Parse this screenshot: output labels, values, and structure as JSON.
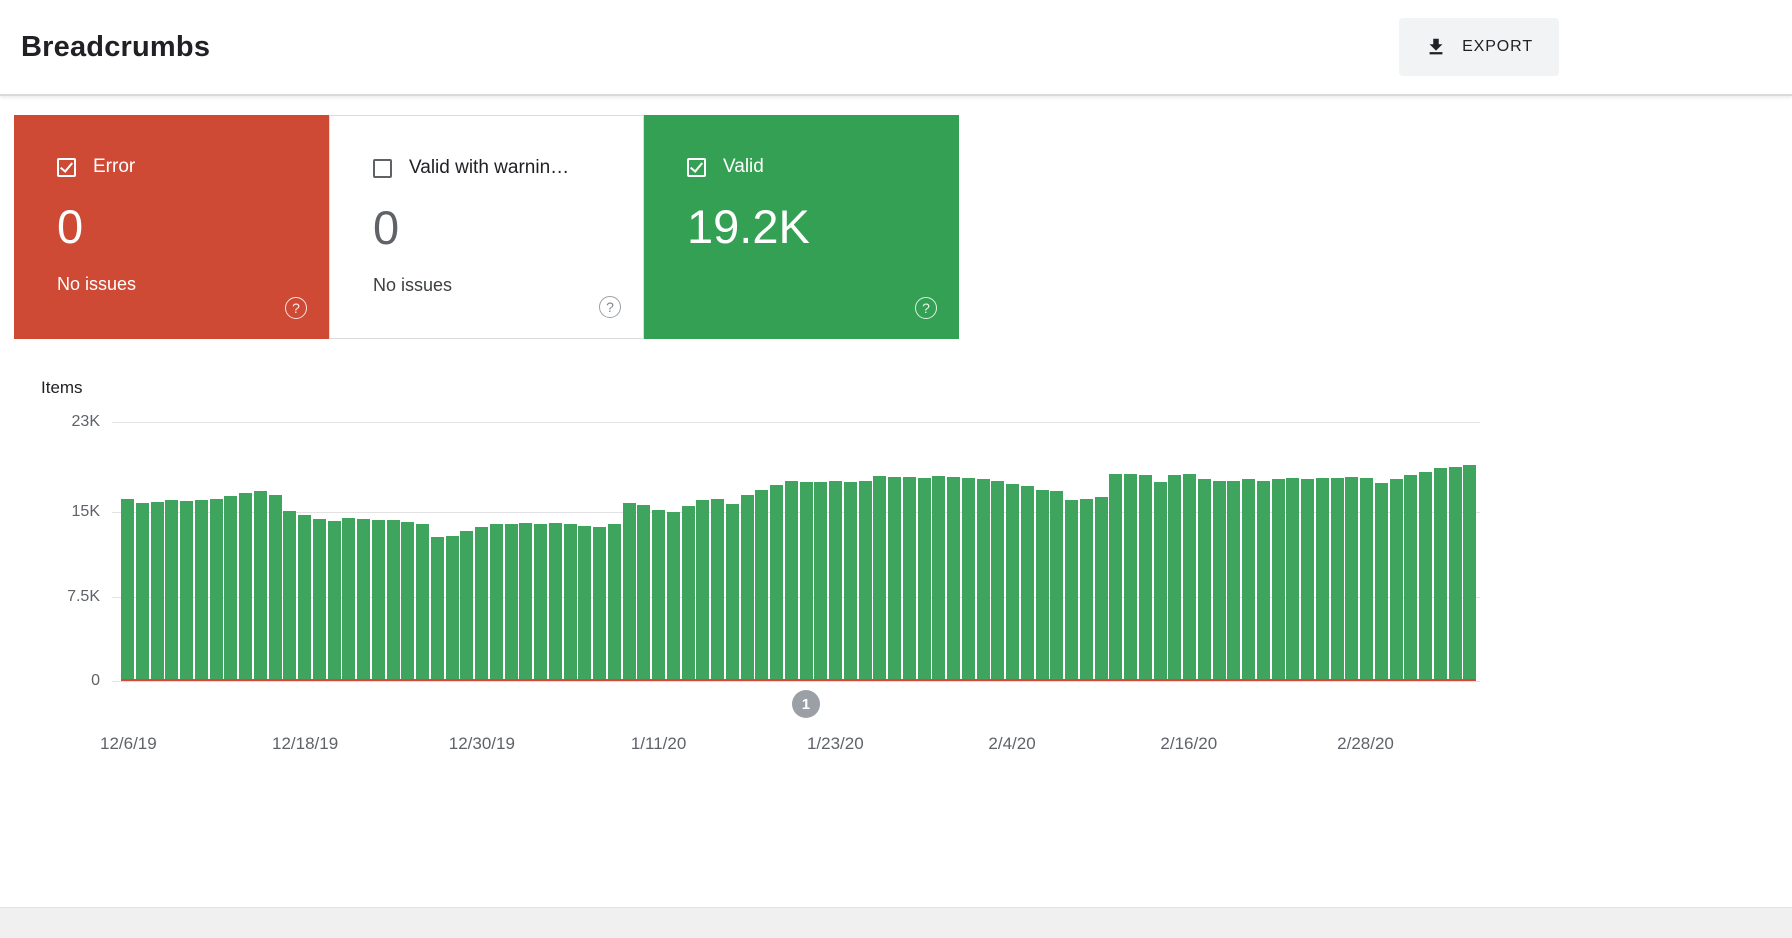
{
  "header": {
    "title": "Breadcrumbs",
    "export_label": "EXPORT"
  },
  "icons": {
    "help_glyph": "?"
  },
  "cards": [
    {
      "label": "Error",
      "value": "0",
      "subtitle": "No issues",
      "checked": true,
      "color": "#CE4A35"
    },
    {
      "label": "Valid with warnin…",
      "value": "0",
      "subtitle": "No issues",
      "checked": false,
      "color": "#FFFFFF"
    },
    {
      "label": "Valid",
      "value": "19.2K",
      "checked": true,
      "color": "#34A054"
    }
  ],
  "colors": {
    "error_red": "#CE4A35",
    "valid_green": "#34A054",
    "bar_green": "#3FA45E",
    "error_line_red": "#DC4437",
    "marker_gray": "#9AA0A6",
    "axis_text": "#5F6368",
    "gridline": "#E2E2E2",
    "export_button_bg": "#F1F3F4"
  },
  "chart_data": {
    "type": "bar",
    "title": "",
    "ylabel": "Items",
    "xlabel": "",
    "ylim": [
      0,
      23000
    ],
    "grid": true,
    "legend_position": "none",
    "yticks": [
      {
        "label": "0",
        "value": 0
      },
      {
        "label": "7.5K",
        "value": 7500
      },
      {
        "label": "15K",
        "value": 15000
      },
      {
        "label": "23K",
        "value": 23000
      }
    ],
    "x_start_date": "12/6/19",
    "x_tick_labels": [
      "12/6/19",
      "12/18/19",
      "12/30/19",
      "1/11/20",
      "1/23/20",
      "2/4/20",
      "2/16/20",
      "2/28/20"
    ],
    "x_tick_indices": [
      0,
      12,
      24,
      36,
      48,
      60,
      72,
      84
    ],
    "series": [
      {
        "name": "Valid",
        "color": "#3FA45E",
        "values": [
          16200,
          15800,
          15900,
          16100,
          16000,
          16100,
          16200,
          16400,
          16700,
          16900,
          16500,
          15100,
          14700,
          14400,
          14200,
          14500,
          14400,
          14300,
          14300,
          14100,
          13900,
          12800,
          12900,
          13300,
          13700,
          13900,
          13900,
          14000,
          13900,
          14000,
          13900,
          13800,
          13700,
          13900,
          15800,
          15600,
          15200,
          15000,
          15500,
          16100,
          16200,
          15700,
          16500,
          17000,
          17400,
          17800,
          17700,
          17700,
          17800,
          17700,
          17800,
          18200,
          18100,
          18100,
          18000,
          18200,
          18100,
          18000,
          17900,
          17800,
          17500,
          17300,
          17000,
          16900,
          16100,
          16200,
          16300,
          18400,
          18400,
          18300,
          17700,
          18300,
          18400,
          17900,
          17800,
          17800,
          17900,
          17800,
          17900,
          18000,
          17900,
          18000,
          18000,
          18100,
          18000,
          17600,
          17900,
          18300,
          18600,
          18900,
          19000,
          19200
        ]
      },
      {
        "name": "Error",
        "color": "#DC4437",
        "constant_value": 0
      }
    ],
    "annotation_marker": {
      "label": "1",
      "day_index": 46
    }
  }
}
